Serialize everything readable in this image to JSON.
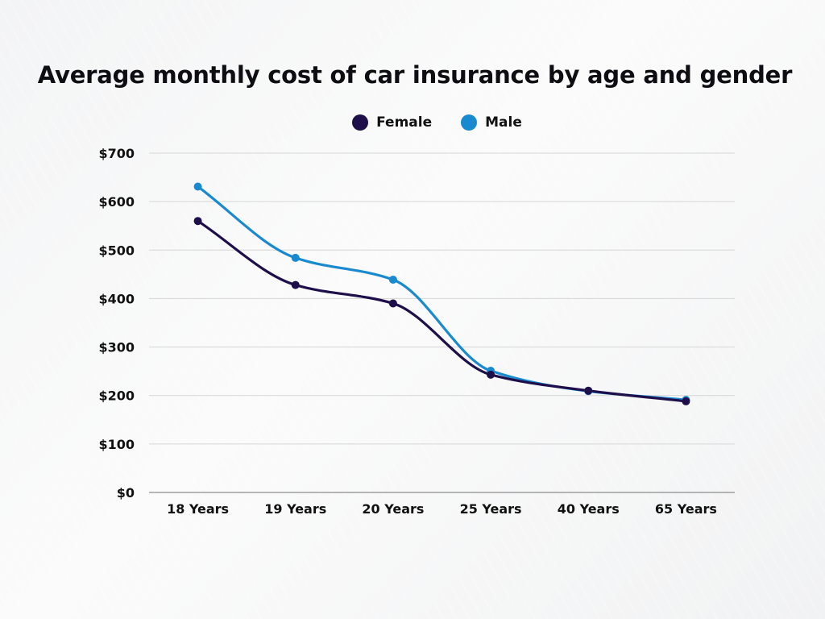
{
  "chart_data": {
    "type": "line",
    "title": "Average monthly cost of car insurance by age and gender",
    "categories": [
      "18 Years",
      "19 Years",
      "20 Years",
      "25 Years",
      "40 Years",
      "65 Years"
    ],
    "series": [
      {
        "name": "Female",
        "color": "#1e0f4a",
        "values": [
          560,
          428,
          390,
          243,
          210,
          188
        ]
      },
      {
        "name": "Male",
        "color": "#1a8ad0",
        "values": [
          631,
          484,
          439,
          251,
          209,
          191
        ]
      }
    ],
    "ylim": [
      0,
      700
    ],
    "yticks": [
      0,
      100,
      200,
      300,
      400,
      500,
      600,
      700
    ],
    "ytick_labels": [
      "$0",
      "$100",
      "$200",
      "$300",
      "$400",
      "$500",
      "$600",
      "$700"
    ],
    "xlabel": "",
    "ylabel": "",
    "grid": true,
    "legend": "top-center",
    "smooth": true
  }
}
